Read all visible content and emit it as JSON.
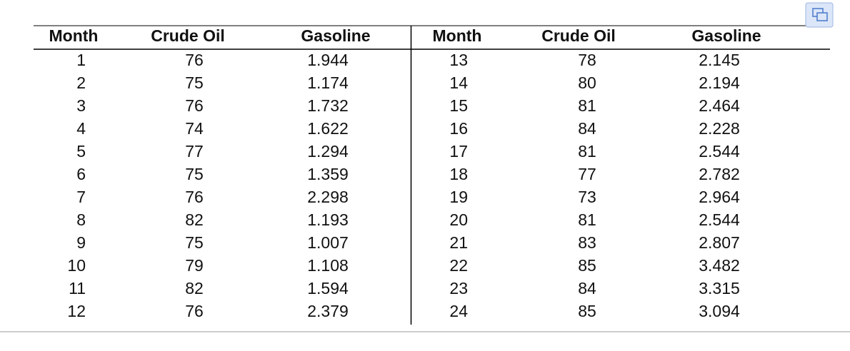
{
  "table": {
    "header": [
      "Month",
      "Crude Oil",
      "Gasoline",
      "Month",
      "Crude Oil",
      "Gasoline"
    ],
    "rows": [
      [
        "1",
        "76",
        "1.944",
        "13",
        "78",
        "2.145"
      ],
      [
        "2",
        "75",
        "1.174",
        "14",
        "80",
        "2.194"
      ],
      [
        "3",
        "76",
        "1.732",
        "15",
        "81",
        "2.464"
      ],
      [
        "4",
        "74",
        "1.622",
        "16",
        "84",
        "2.228"
      ],
      [
        "5",
        "77",
        "1.294",
        "17",
        "81",
        "2.544"
      ],
      [
        "6",
        "75",
        "1.359",
        "18",
        "77",
        "2.782"
      ],
      [
        "7",
        "76",
        "2.298",
        "19",
        "73",
        "2.964"
      ],
      [
        "8",
        "82",
        "1.193",
        "20",
        "81",
        "2.544"
      ],
      [
        "9",
        "75",
        "1.007",
        "21",
        "83",
        "2.807"
      ],
      [
        "10",
        "79",
        "1.108",
        "22",
        "85",
        "3.482"
      ],
      [
        "11",
        "82",
        "1.594",
        "23",
        "84",
        "3.315"
      ],
      [
        "12",
        "76",
        "2.379",
        "24",
        "85",
        "3.094"
      ]
    ]
  }
}
